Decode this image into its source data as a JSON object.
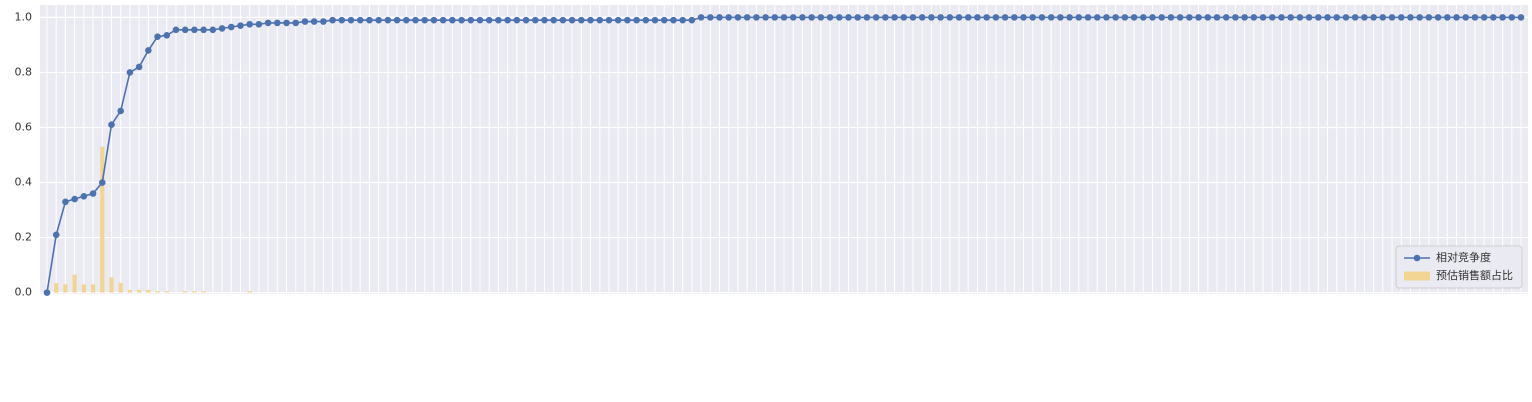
{
  "chart_data": {
    "type": "line",
    "categories": [
      null,
      null,
      null,
      null,
      null,
      null,
      null,
      null,
      null,
      null,
      null,
      null,
      null,
      null,
      null,
      null,
      null,
      null,
      null,
      null,
      null,
      null,
      null,
      null,
      null,
      null,
      null,
      null,
      null,
      null,
      null,
      null,
      null,
      null,
      null,
      null,
      null,
      null,
      null,
      null,
      null,
      null,
      null,
      null,
      null,
      null,
      null,
      null,
      null,
      null,
      null,
      null,
      null,
      null,
      null,
      null,
      null,
      null,
      null,
      null,
      null,
      null,
      null,
      null,
      null,
      null,
      null,
      null,
      null,
      null,
      null,
      null,
      null,
      null,
      null,
      null,
      null,
      null,
      null,
      null,
      null,
      null,
      null,
      null,
      null,
      null,
      null,
      null,
      null,
      null,
      null,
      null,
      null,
      null,
      null,
      null,
      null,
      null,
      null,
      null,
      null,
      null,
      null,
      null,
      null,
      null,
      null,
      null,
      null,
      null,
      null,
      null,
      null,
      null,
      null,
      null,
      null,
      null,
      null,
      null,
      null,
      null,
      null,
      null,
      null,
      null,
      null,
      null,
      null,
      null,
      null,
      null,
      null,
      null,
      null,
      null,
      null,
      null,
      null,
      null,
      null,
      null,
      null,
      null,
      null,
      null,
      null,
      null,
      null,
      null,
      null,
      null,
      null,
      null,
      null,
      null,
      null,
      null,
      null,
      null,
      null
    ],
    "series": [
      {
        "name": "预估销售额占比",
        "type": "bar",
        "color": "#f3d592",
        "values": [
          0,
          0.035,
          0.03,
          0.065,
          0.03,
          0.03,
          0.53,
          0.055,
          0.035,
          0.01,
          0.01,
          0.01,
          0.005,
          0.005,
          0,
          0.005,
          0.005,
          0.005,
          0,
          0,
          0,
          0,
          0.005,
          0,
          0,
          0,
          0,
          0,
          0,
          0,
          0,
          0,
          0,
          0,
          0,
          0,
          0,
          0,
          0,
          0,
          0,
          0,
          0,
          0,
          0,
          0,
          0,
          0,
          0,
          0,
          0,
          0,
          0,
          0,
          0,
          0,
          0,
          0,
          0,
          0,
          0,
          0,
          0,
          0,
          0,
          0,
          0,
          0,
          0,
          0,
          0,
          0,
          0,
          0,
          0,
          0,
          0,
          0,
          0,
          0,
          0,
          0,
          0,
          0,
          0,
          0,
          0,
          0,
          0,
          0,
          0,
          0,
          0,
          0,
          0,
          0,
          0,
          0,
          0,
          0,
          0,
          0,
          0,
          0,
          0,
          0,
          0,
          0,
          0,
          0,
          0,
          0,
          0,
          0,
          0,
          0,
          0,
          0,
          0,
          0,
          0,
          0,
          0,
          0,
          0,
          0,
          0,
          0,
          0,
          0,
          0,
          0,
          0,
          0,
          0,
          0,
          0,
          0,
          0,
          0,
          0,
          0,
          0,
          0,
          0,
          0,
          0,
          0,
          0,
          0,
          0,
          0,
          0,
          0,
          0,
          0,
          0,
          0,
          0,
          0,
          0
        ]
      },
      {
        "name": "相对竞争度",
        "type": "line",
        "color": "#4c72b0",
        "values": [
          0,
          0.21,
          0.33,
          0.34,
          0.35,
          0.36,
          0.4,
          0.61,
          0.66,
          0.8,
          0.82,
          0.88,
          0.93,
          0.935,
          0.955,
          0.955,
          0.955,
          0.955,
          0.955,
          0.96,
          0.965,
          0.97,
          0.975,
          0.975,
          0.98,
          0.98,
          0.98,
          0.98,
          0.985,
          0.985,
          0.985,
          0.99,
          0.99,
          0.99,
          0.99,
          0.99,
          0.99,
          0.99,
          0.99,
          0.99,
          0.99,
          0.99,
          0.99,
          0.99,
          0.99,
          0.99,
          0.99,
          0.99,
          0.99,
          0.99,
          0.99,
          0.99,
          0.99,
          0.99,
          0.99,
          0.99,
          0.99,
          0.99,
          0.99,
          0.99,
          0.99,
          0.99,
          0.99,
          0.99,
          0.99,
          0.99,
          0.99,
          0.99,
          0.99,
          0.99,
          0.99,
          1,
          1,
          1,
          1,
          1,
          1,
          1,
          1,
          1,
          1,
          1,
          1,
          1,
          1,
          1,
          1,
          1,
          1,
          1,
          1,
          1,
          1,
          1,
          1,
          1,
          1,
          1,
          1,
          1,
          1,
          1,
          1,
          1,
          1,
          1,
          1,
          1,
          1,
          1,
          1,
          1,
          1,
          1,
          1,
          1,
          1,
          1,
          1,
          1,
          1,
          1,
          1,
          1,
          1,
          1,
          1,
          1,
          1,
          1,
          1,
          1,
          1,
          1,
          1,
          1,
          1,
          1,
          1,
          1,
          1,
          1,
          1,
          1,
          1,
          1,
          1,
          1,
          1,
          1,
          1,
          1,
          1,
          1,
          1,
          1,
          1,
          1,
          1,
          1,
          1
        ]
      }
    ],
    "ylim": [
      -0.005,
      1.045
    ],
    "yticks": [
      {
        "value": 0,
        "label": "0.0"
      },
      0.2,
      0.4,
      0.6,
      0.8,
      {
        "value": 1,
        "label": "1.0"
      }
    ],
    "grid": true,
    "legend": "lower right"
  }
}
